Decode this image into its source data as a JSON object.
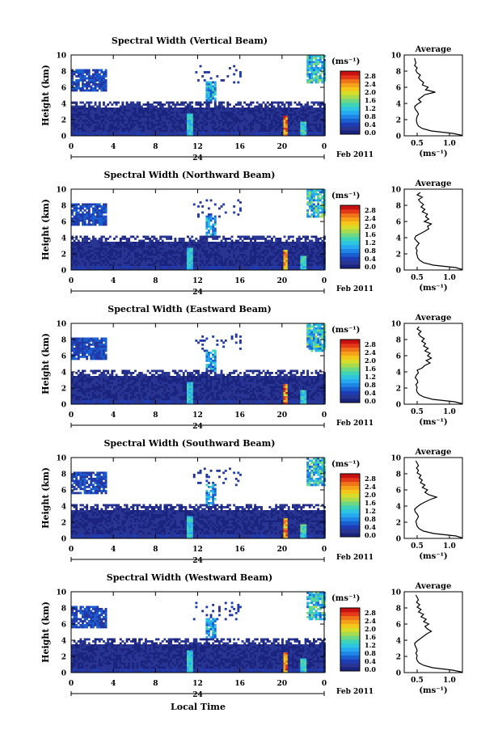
{
  "figure": {
    "shared_xlabel": "Local Time",
    "date_label": "24",
    "month_label": "Feb 2011"
  },
  "colorscale": {
    "unit": "(ms⁻¹)",
    "ticks": [
      "2.8",
      "2.4",
      "2.0",
      "1.6",
      "1.2",
      "0.8",
      "0.4",
      "0.0"
    ],
    "colors": [
      "#f0e6f5",
      "#1a237e",
      "#283593",
      "#1e3cb4",
      "#1a5fd0",
      "#1f86e6",
      "#26a9ee",
      "#2ec5e0",
      "#3fd3b8",
      "#6ed883",
      "#a8dc4e",
      "#d8dc2a",
      "#f5c71a",
      "#f5a21a",
      "#f0741a",
      "#e53a1a",
      "#c81212"
    ]
  },
  "chart_data": [
    {
      "type": "heatmap",
      "title": "Spectral Width (Vertical Beam)",
      "xlabel": "",
      "ylabel": "Height (km)",
      "xlim": [
        0,
        24
      ],
      "ylim": [
        0,
        10
      ],
      "xticks": [
        "0",
        "4",
        "8",
        "12",
        "16",
        "20",
        "0"
      ],
      "yticks": [
        "0",
        "2",
        "4",
        "6",
        "8",
        "10"
      ],
      "colorbar_label": "(ms⁻¹)",
      "colorbar_range": [
        0.0,
        2.8
      ],
      "profile": {
        "title": "Average",
        "xlabel": "(ms⁻¹)",
        "xticks": [
          "0.5",
          "1.0"
        ],
        "xlim": [
          0.3,
          1.2
        ],
        "ylim": [
          0,
          10
        ],
        "heights": [
          0.3,
          0.6,
          0.9,
          1.2,
          1.5,
          1.8,
          2.1,
          2.4,
          2.7,
          3.0,
          3.3,
          3.6,
          3.9,
          4.2,
          4.5,
          4.8,
          5.1,
          5.4,
          5.7,
          6.0,
          6.3,
          6.6,
          6.9,
          7.2,
          7.5,
          7.8,
          8.1,
          8.4,
          8.7,
          9.0,
          9.3,
          9.6
        ],
        "values": [
          1.05,
          0.72,
          0.58,
          0.52,
          0.5,
          0.49,
          0.49,
          0.5,
          0.52,
          0.5,
          0.47,
          0.46,
          0.5,
          0.56,
          0.52,
          0.57,
          0.62,
          0.78,
          0.63,
          0.67,
          0.58,
          0.6,
          0.55,
          0.52,
          0.55,
          0.5,
          0.48,
          0.5,
          0.46,
          0.48,
          0.47,
          0.46
        ]
      }
    },
    {
      "type": "heatmap",
      "title": "Spectral Width (Northward Beam)",
      "xlabel": "",
      "ylabel": "Height (km)",
      "xlim": [
        0,
        24
      ],
      "ylim": [
        0,
        10
      ],
      "xticks": [
        "0",
        "4",
        "8",
        "12",
        "16",
        "20",
        "0"
      ],
      "yticks": [
        "0",
        "2",
        "4",
        "6",
        "8",
        "10"
      ],
      "colorbar_label": "(ms⁻¹)",
      "colorbar_range": [
        0.0,
        2.8
      ],
      "profile": {
        "title": "Average",
        "xlabel": "(ms⁻¹)",
        "xticks": [
          "0.5",
          "1.0"
        ],
        "xlim": [
          0.3,
          1.2
        ],
        "ylim": [
          0,
          10
        ],
        "heights": [
          0.3,
          0.6,
          0.9,
          1.2,
          1.5,
          1.8,
          2.1,
          2.4,
          2.7,
          3.0,
          3.3,
          3.6,
          3.9,
          4.2,
          4.5,
          4.8,
          5.1,
          5.4,
          5.7,
          6.0,
          6.3,
          6.6,
          6.9,
          7.2,
          7.5,
          7.8,
          8.1,
          8.4,
          8.7,
          9.0,
          9.3,
          9.6
        ],
        "values": [
          1.1,
          0.75,
          0.6,
          0.54,
          0.51,
          0.5,
          0.49,
          0.5,
          0.48,
          0.5,
          0.53,
          0.49,
          0.46,
          0.48,
          0.55,
          0.62,
          0.68,
          0.66,
          0.72,
          0.61,
          0.68,
          0.63,
          0.66,
          0.58,
          0.62,
          0.56,
          0.6,
          0.55,
          0.52,
          0.58,
          0.5,
          0.55
        ]
      }
    },
    {
      "type": "heatmap",
      "title": "Spectral Width (Eastward Beam)",
      "xlabel": "",
      "ylabel": "Height (km)",
      "xlim": [
        0,
        24
      ],
      "ylim": [
        0,
        10
      ],
      "xticks": [
        "0",
        "4",
        "8",
        "12",
        "16",
        "20",
        "0"
      ],
      "yticks": [
        "0",
        "2",
        "4",
        "6",
        "8",
        "10"
      ],
      "colorbar_label": "(ms⁻¹)",
      "colorbar_range": [
        0.0,
        2.8
      ],
      "profile": {
        "title": "Average",
        "xlabel": "(ms⁻¹)",
        "xticks": [
          "0.5",
          "1.0"
        ],
        "xlim": [
          0.3,
          1.2
        ],
        "ylim": [
          0,
          10
        ],
        "heights": [
          0.3,
          0.6,
          0.9,
          1.2,
          1.5,
          1.8,
          2.1,
          2.4,
          2.7,
          3.0,
          3.3,
          3.6,
          3.9,
          4.2,
          4.5,
          4.8,
          5.1,
          5.4,
          5.7,
          6.0,
          6.3,
          6.6,
          6.9,
          7.2,
          7.5,
          7.8,
          8.1,
          8.4,
          8.7,
          9.0,
          9.3,
          9.6
        ],
        "values": [
          1.08,
          0.74,
          0.6,
          0.53,
          0.5,
          0.49,
          0.5,
          0.48,
          0.51,
          0.5,
          0.47,
          0.49,
          0.52,
          0.5,
          0.58,
          0.62,
          0.7,
          0.64,
          0.72,
          0.66,
          0.7,
          0.62,
          0.67,
          0.6,
          0.63,
          0.57,
          0.61,
          0.55,
          0.52,
          0.56,
          0.5,
          0.53
        ]
      }
    },
    {
      "type": "heatmap",
      "title": "Spectral Width (Southward Beam)",
      "xlabel": "",
      "ylabel": "Height (km)",
      "xlim": [
        0,
        24
      ],
      "ylim": [
        0,
        10
      ],
      "xticks": [
        "0",
        "4",
        "8",
        "12",
        "16",
        "20",
        "0"
      ],
      "yticks": [
        "0",
        "2",
        "4",
        "6",
        "8",
        "10"
      ],
      "colorbar_label": "(ms⁻¹)",
      "colorbar_range": [
        0.0,
        2.8
      ],
      "profile": {
        "title": "Average",
        "xlabel": "(ms⁻¹)",
        "xticks": [
          "0.5",
          "1.0"
        ],
        "xlim": [
          0.3,
          1.2
        ],
        "ylim": [
          0,
          10
        ],
        "heights": [
          0.3,
          0.6,
          0.9,
          1.2,
          1.5,
          1.8,
          2.1,
          2.4,
          2.7,
          3.0,
          3.3,
          3.6,
          3.9,
          4.2,
          4.5,
          4.8,
          5.1,
          5.4,
          5.7,
          6.0,
          6.3,
          6.6,
          6.9,
          7.2,
          7.5,
          7.8,
          8.1,
          8.4,
          8.7,
          9.0,
          9.3,
          9.6
        ],
        "values": [
          1.1,
          0.76,
          0.6,
          0.53,
          0.5,
          0.49,
          0.48,
          0.5,
          0.52,
          0.5,
          0.47,
          0.46,
          0.5,
          0.55,
          0.62,
          0.7,
          0.8,
          0.68,
          0.62,
          0.66,
          0.58,
          0.62,
          0.55,
          0.58,
          0.53,
          0.56,
          0.5,
          0.52,
          0.49,
          0.52,
          0.5,
          0.48
        ]
      }
    },
    {
      "type": "heatmap",
      "title": "Spectral Width (Westward Beam)",
      "xlabel": "Local Time",
      "ylabel": "Height (km)",
      "xlim": [
        0,
        24
      ],
      "ylim": [
        0,
        10
      ],
      "xticks": [
        "0",
        "4",
        "8",
        "12",
        "16",
        "20",
        "0"
      ],
      "yticks": [
        "0",
        "2",
        "4",
        "6",
        "8",
        "10"
      ],
      "colorbar_label": "(ms⁻¹)",
      "colorbar_range": [
        0.0,
        2.8
      ],
      "profile": {
        "title": "Average",
        "xlabel": "(ms⁻¹)",
        "xticks": [
          "0.5",
          "1.0"
        ],
        "xlim": [
          0.3,
          1.2
        ],
        "ylim": [
          0,
          10
        ],
        "heights": [
          0.3,
          0.6,
          0.9,
          1.2,
          1.5,
          1.8,
          2.1,
          2.4,
          2.7,
          3.0,
          3.3,
          3.6,
          3.9,
          4.2,
          4.5,
          4.8,
          5.1,
          5.4,
          5.7,
          6.0,
          6.3,
          6.6,
          6.9,
          7.2,
          7.5,
          7.8,
          8.1,
          8.4,
          8.7,
          9.0,
          9.3,
          9.6
        ],
        "values": [
          1.05,
          0.74,
          0.6,
          0.53,
          0.5,
          0.49,
          0.5,
          0.48,
          0.5,
          0.49,
          0.47,
          0.46,
          0.5,
          0.55,
          0.6,
          0.65,
          0.72,
          0.66,
          0.62,
          0.68,
          0.6,
          0.64,
          0.56,
          0.6,
          0.52,
          0.56,
          0.5,
          0.54,
          0.49,
          0.52,
          0.5,
          0.48
        ]
      }
    }
  ]
}
